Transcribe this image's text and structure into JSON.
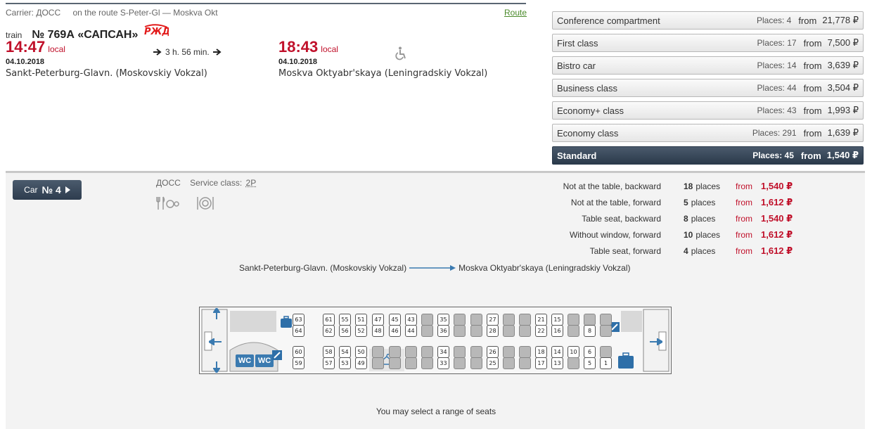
{
  "header": {
    "carrier_label": "Carrier: ДОСС",
    "route_text": "on the route S-Peter-Gl — Moskva Okt",
    "route_link": "Route",
    "train_word": "train",
    "train_number": "№ 769А «САПСАН»",
    "rzd_logo": "РЖД"
  },
  "departure": {
    "time": "14:47",
    "local": "local",
    "date": "04.10.2018",
    "station": "Sankt-Peterburg-Glavn. (Moskovskiy Vokzal)"
  },
  "duration": "3 h. 56 min.",
  "arrival": {
    "time": "18:43",
    "local": "local",
    "date": "04.10.2018",
    "station": "Moskva Oktyabr'skaya (Leningradskiy Vokzal)"
  },
  "accessibility_icon": "wheelchair-icon",
  "classes": [
    {
      "name": "Conference compartment",
      "places": "Places: 4",
      "from": "from",
      "price": "21,778 ₽",
      "active": false
    },
    {
      "name": "First class",
      "places": "Places: 17",
      "from": "from",
      "price": "7,500 ₽",
      "active": false
    },
    {
      "name": "Bistro car",
      "places": "Places: 14",
      "from": "from",
      "price": "3,639 ₽",
      "active": false
    },
    {
      "name": "Business class",
      "places": "Places: 44",
      "from": "from",
      "price": "3,504 ₽",
      "active": false
    },
    {
      "name": "Economy+ class",
      "places": "Places: 43",
      "from": "from",
      "price": "1,993 ₽",
      "active": false
    },
    {
      "name": "Economy class",
      "places": "Places: 291",
      "from": "from",
      "price": "1,639 ₽",
      "active": false
    },
    {
      "name": "Standard",
      "places": "Places: 45",
      "from": "from",
      "price": "1,540 ₽",
      "active": true
    }
  ],
  "car": {
    "button_prefix": "Car",
    "button_number": "№ 4",
    "carrier": "ДОСС",
    "service_label": "Service class:",
    "service_class": "2P"
  },
  "seat_categories": [
    {
      "label": "Not at the table, backward",
      "count": "18",
      "unit": "places",
      "from": "from",
      "price": "1,540 ₽"
    },
    {
      "label": "Not at the table, forward",
      "count": "5",
      "unit": "places",
      "from": "from",
      "price": "1,612 ₽"
    },
    {
      "label": "Table seat, backward",
      "count": "8",
      "unit": "places",
      "from": "from",
      "price": "1,540 ₽"
    },
    {
      "label": "Without window, forward",
      "count": "10",
      "unit": "places",
      "from": "from",
      "price": "1,612 ₽"
    },
    {
      "label": "Table seat, forward",
      "count": "4",
      "unit": "places",
      "from": "from",
      "price": "1,612 ₽"
    }
  ],
  "direction": {
    "from": "Sankt-Peterburg-Glavn. (Moskovskiy Vokzal)",
    "to": "Moskva Oktyabr'skaya (Leningradskiy Vokzal)"
  },
  "wc_label": "WC",
  "hint": "You may select a range of seats",
  "seatmap": {
    "available": [
      "63",
      "64",
      "61",
      "62",
      "55",
      "56",
      "51",
      "52",
      "47",
      "48",
      "45",
      "46",
      "43",
      "44",
      "35",
      "36",
      "27",
      "28",
      "21",
      "22",
      "15",
      "16",
      "8",
      "60",
      "59",
      "58",
      "57",
      "54",
      "53",
      "50",
      "49",
      "34",
      "33",
      "26",
      "25",
      "18",
      "17",
      "14",
      "13",
      "10",
      "6",
      "5",
      "1"
    ],
    "columns": [
      {
        "top": [
          "",
          "63",
          "64"
        ],
        "bottom": [
          "",
          "60",
          "59"
        ]
      },
      {
        "top": [
          "61",
          "62"
        ],
        "bottom": [
          "58",
          "57"
        ]
      },
      {
        "top": [
          "55",
          "56"
        ],
        "bottom": [
          "54",
          "53"
        ]
      },
      {
        "top": [
          "51",
          "52"
        ],
        "bottom": [
          "50",
          "49"
        ]
      },
      {
        "top": [
          "47",
          "48"
        ],
        "bottom": [
          "",
          ""
        ]
      },
      {
        "top": [
          "45",
          "46"
        ],
        "bottom": [
          "",
          ""
        ]
      },
      {
        "top": [
          "43",
          "44"
        ],
        "bottom": [
          "",
          ""
        ]
      },
      {
        "top": [
          "",
          ""
        ],
        "bottom": [
          "",
          ""
        ]
      },
      {
        "top": [
          "35",
          "36"
        ],
        "bottom": [
          "34",
          "33"
        ]
      },
      {
        "top": [
          "",
          ""
        ],
        "bottom": [
          "",
          ""
        ]
      },
      {
        "top": [
          "",
          ""
        ],
        "bottom": [
          "",
          ""
        ]
      },
      {
        "top": [
          "27",
          "28"
        ],
        "bottom": [
          "26",
          "25"
        ]
      },
      {
        "top": [
          "",
          ""
        ],
        "bottom": [
          "",
          ""
        ]
      },
      {
        "top": [
          "",
          ""
        ],
        "bottom": [
          "",
          ""
        ]
      },
      {
        "top": [
          "21",
          "22"
        ],
        "bottom": [
          "18",
          "17"
        ]
      },
      {
        "top": [
          "15",
          "16"
        ],
        "bottom": [
          "14",
          "13"
        ]
      },
      {
        "top": [
          "",
          ""
        ],
        "bottom": [
          "10",
          ""
        ]
      },
      {
        "top": [
          "",
          "8"
        ],
        "bottom": [
          "6",
          "5"
        ]
      },
      {
        "top": [
          "",
          ""
        ],
        "bottom": [
          "",
          "1"
        ]
      }
    ]
  }
}
